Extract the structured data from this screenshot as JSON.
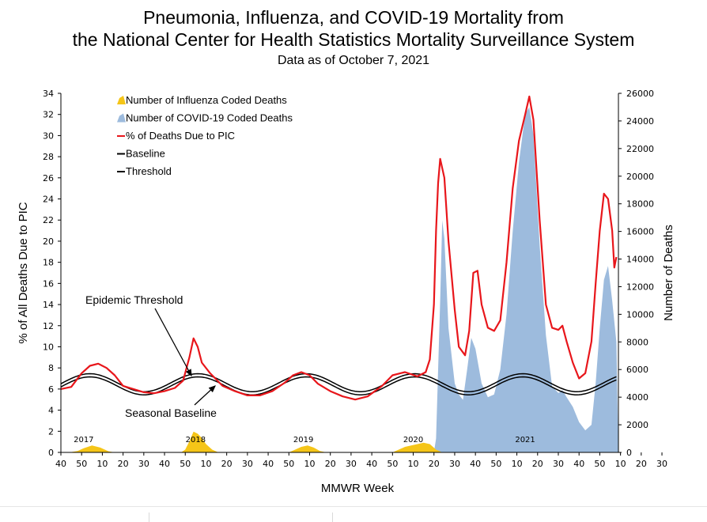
{
  "header": {
    "title_line1": "Pneumonia, Influenza, and COVID-19 Mortality from",
    "title_line2": "the National Center for Health Statistics Mortality Surveillance System",
    "subtitle": "Data as of October 7, 2021"
  },
  "chart_data": {
    "type": "area",
    "xlabel": "MMWR Week",
    "ylabel_left": "% of All Deaths Due to PIC",
    "ylabel_right": "Number of Deaths",
    "ylim_left": [
      0,
      34
    ],
    "ylim_right": [
      0,
      26000
    ],
    "yticks_left": [
      0,
      2,
      4,
      6,
      8,
      10,
      12,
      14,
      16,
      18,
      20,
      22,
      24,
      26,
      28,
      30,
      32,
      34
    ],
    "yticks_right": [
      0,
      2000,
      4000,
      6000,
      8000,
      10000,
      12000,
      14000,
      16000,
      18000,
      20000,
      22000,
      24000,
      26000
    ],
    "xtick_labels": [
      "40",
      "50",
      "10",
      "20",
      "30",
      "40",
      "50",
      "10",
      "20",
      "30",
      "40",
      "50",
      "10",
      "20",
      "30",
      "40",
      "50",
      "10",
      "20",
      "30",
      "40",
      "50",
      "10",
      "20",
      "30",
      "40",
      "50",
      "10",
      "20",
      "30"
    ],
    "year_labels": [
      {
        "text": "2017",
        "week_index": 11
      },
      {
        "text": "2018",
        "week_index": 65
      },
      {
        "text": "2019",
        "week_index": 117
      },
      {
        "text": "2020",
        "week_index": 170
      },
      {
        "text": "2021",
        "week_index": 224
      }
    ],
    "annotations": [
      {
        "text": "Epidemic Threshold"
      },
      {
        "text": "Seasonal Baseline"
      }
    ],
    "legend_position": "top-left",
    "colors": {
      "influenza": "#f5c518",
      "covid": "#9dbbdd",
      "pic": "#e8161b",
      "baseline": "#000000"
    },
    "series": [
      {
        "name": "Number of Influenza Coded Deaths",
        "type": "area",
        "axis": "right",
        "points": [
          [
            0,
            0
          ],
          [
            4,
            0
          ],
          [
            8,
            100
          ],
          [
            11,
            300
          ],
          [
            15,
            500
          ],
          [
            19,
            350
          ],
          [
            23,
            80
          ],
          [
            26,
            0
          ],
          [
            58,
            0
          ],
          [
            60,
            200
          ],
          [
            62,
            800
          ],
          [
            64,
            1500
          ],
          [
            66,
            1350
          ],
          [
            68,
            1050
          ],
          [
            70,
            600
          ],
          [
            73,
            200
          ],
          [
            76,
            0
          ],
          [
            110,
            0
          ],
          [
            113,
            200
          ],
          [
            116,
            400
          ],
          [
            119,
            500
          ],
          [
            122,
            350
          ],
          [
            125,
            100
          ],
          [
            128,
            0
          ],
          [
            160,
            0
          ],
          [
            163,
            200
          ],
          [
            166,
            400
          ],
          [
            169,
            500
          ],
          [
            172,
            600
          ],
          [
            175,
            700
          ],
          [
            178,
            600
          ],
          [
            181,
            200
          ],
          [
            184,
            0
          ],
          [
            249,
            0
          ]
        ]
      },
      {
        "name": "Number of COVID-19 Coded Deaths",
        "type": "area",
        "axis": "right",
        "points": [
          [
            0,
            0
          ],
          [
            180,
            0
          ],
          [
            181,
            1000
          ],
          [
            183,
            11000
          ],
          [
            184,
            16800
          ],
          [
            185,
            15500
          ],
          [
            187,
            9000
          ],
          [
            190,
            5000
          ],
          [
            192,
            4200
          ],
          [
            194,
            3800
          ],
          [
            196,
            6000
          ],
          [
            198,
            8300
          ],
          [
            200,
            7500
          ],
          [
            203,
            5000
          ],
          [
            206,
            4000
          ],
          [
            209,
            4200
          ],
          [
            212,
            6000
          ],
          [
            215,
            10000
          ],
          [
            218,
            16000
          ],
          [
            221,
            21000
          ],
          [
            224,
            24500
          ],
          [
            226,
            25000
          ],
          [
            228,
            23000
          ],
          [
            231,
            15000
          ],
          [
            234,
            8500
          ],
          [
            237,
            4800
          ],
          [
            240,
            4300
          ],
          [
            242,
            4500
          ],
          [
            244,
            4000
          ],
          [
            247,
            3300
          ],
          [
            250,
            2200
          ],
          [
            253,
            1600
          ],
          [
            256,
            2000
          ],
          [
            258,
            5000
          ],
          [
            260,
            9000
          ],
          [
            262,
            12500
          ],
          [
            264,
            13500
          ],
          [
            266,
            11000
          ],
          [
            268,
            8000
          ],
          [
            269,
            0
          ]
        ]
      },
      {
        "name": "% of Deaths Due to PIC",
        "type": "line",
        "axis": "left",
        "points": [
          [
            0,
            6.0
          ],
          [
            5,
            6.2
          ],
          [
            10,
            7.5
          ],
          [
            14,
            8.2
          ],
          [
            18,
            8.4
          ],
          [
            22,
            8.0
          ],
          [
            26,
            7.3
          ],
          [
            30,
            6.3
          ],
          [
            35,
            6.0
          ],
          [
            40,
            5.7
          ],
          [
            45,
            5.6
          ],
          [
            50,
            5.8
          ],
          [
            55,
            6.1
          ],
          [
            59,
            6.8
          ],
          [
            62,
            9.0
          ],
          [
            64,
            10.8
          ],
          [
            66,
            10.0
          ],
          [
            68,
            8.5
          ],
          [
            72,
            7.5
          ],
          [
            78,
            6.3
          ],
          [
            84,
            5.8
          ],
          [
            90,
            5.4
          ],
          [
            96,
            5.4
          ],
          [
            102,
            5.8
          ],
          [
            108,
            6.6
          ],
          [
            112,
            7.3
          ],
          [
            116,
            7.6
          ],
          [
            120,
            7.3
          ],
          [
            124,
            6.5
          ],
          [
            130,
            5.8
          ],
          [
            136,
            5.3
          ],
          [
            142,
            5.0
          ],
          [
            148,
            5.3
          ],
          [
            155,
            6.3
          ],
          [
            160,
            7.3
          ],
          [
            166,
            7.6
          ],
          [
            172,
            7.2
          ],
          [
            176,
            7.6
          ],
          [
            178,
            8.8
          ],
          [
            180,
            14.0
          ],
          [
            181,
            21.0
          ],
          [
            182,
            25.5
          ],
          [
            183,
            27.8
          ],
          [
            185,
            26.0
          ],
          [
            187,
            20.0
          ],
          [
            190,
            13.5
          ],
          [
            192,
            10.0
          ],
          [
            195,
            9.2
          ],
          [
            197,
            11.5
          ],
          [
            199,
            17.0
          ],
          [
            201,
            17.2
          ],
          [
            203,
            14.0
          ],
          [
            206,
            11.8
          ],
          [
            209,
            11.5
          ],
          [
            212,
            12.5
          ],
          [
            215,
            18.0
          ],
          [
            218,
            25.0
          ],
          [
            221,
            29.5
          ],
          [
            224,
            32.0
          ],
          [
            226,
            33.7
          ],
          [
            228,
            31.5
          ],
          [
            231,
            22.0
          ],
          [
            234,
            14.0
          ],
          [
            237,
            11.8
          ],
          [
            240,
            11.6
          ],
          [
            242,
            12.0
          ],
          [
            244,
            10.5
          ],
          [
            247,
            8.5
          ],
          [
            250,
            7.0
          ],
          [
            253,
            7.5
          ],
          [
            256,
            10.5
          ],
          [
            258,
            16.0
          ],
          [
            260,
            21.0
          ],
          [
            262,
            24.5
          ],
          [
            264,
            24.0
          ],
          [
            266,
            21.0
          ],
          [
            267,
            17.5
          ],
          [
            268,
            18.5
          ]
        ]
      },
      {
        "name": "Baseline",
        "type": "line",
        "axis": "left",
        "sinusoid": {
          "mean": 6.3,
          "amplitude": 0.85,
          "peak_week_index": 14,
          "period_weeks": 52.2
        }
      },
      {
        "name": "Threshold",
        "type": "line",
        "axis": "left",
        "sinusoid": {
          "mean": 6.6,
          "amplitude": 0.85,
          "peak_week_index": 14,
          "period_weeks": 52.2
        }
      }
    ]
  }
}
